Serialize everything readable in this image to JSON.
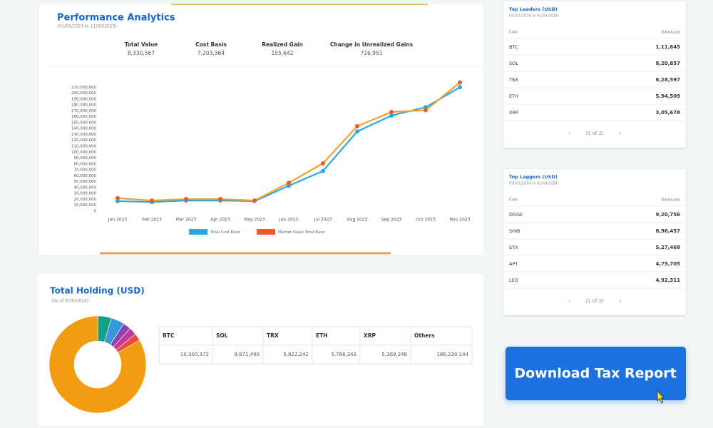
{
  "performance": {
    "title": "Performance Analytics",
    "subtitle": "(01/01/2023 to 11/30/2023)",
    "stats": [
      {
        "label": "Total Value",
        "value": "8,330,567"
      },
      {
        "label": "Cost Basis",
        "value": "7,203,364"
      },
      {
        "label": "Realized Gain",
        "value": "155,642"
      },
      {
        "label": "Change in Unrealized Gains",
        "value": "726,951"
      }
    ],
    "chart": {
      "type": "line",
      "categories": [
        "Jan 2023",
        "Feb 2023",
        "Mar 2023",
        "Apr 2023",
        "May 2023",
        "Jun 2023",
        "Jul 2023",
        "Aug 2023",
        "Sep 2023",
        "Oct 2023",
        "Nov 2023"
      ],
      "series": [
        {
          "name": "Total Cost Base",
          "color": "#29a8e0",
          "values": [
            17000000,
            15500000,
            18000000,
            18000000,
            17000000,
            43000000,
            68000000,
            135000000,
            162000000,
            176000000,
            210000000
          ]
        },
        {
          "name": "Market Value Total Base",
          "color": "#f4a12c",
          "values": [
            22000000,
            18000000,
            20500000,
            20500000,
            18000000,
            48000000,
            81000000,
            144000000,
            168000000,
            171000000,
            218000000
          ]
        }
      ],
      "ylim": [
        0,
        220000000
      ],
      "yticks": [
        0,
        {
          "value": 10000000,
          "label": "10,000,000"
        },
        {
          "value": 20000000,
          "label": "20,000,000"
        },
        {
          "value": 30000000,
          "label": "30,000,000"
        },
        {
          "value": 40000000,
          "label": "40,000,000"
        },
        {
          "value": 50000000,
          "label": "50,000,000"
        },
        {
          "value": 60000000,
          "label": "60,000,000"
        },
        {
          "value": 70000000,
          "label": "70,000,000"
        },
        {
          "value": 80000000,
          "label": "80,000,000"
        },
        {
          "value": 90000000,
          "label": "90,000,000"
        },
        {
          "value": 100000000,
          "label": "100,000,000"
        },
        {
          "value": 110000000,
          "label": "110,000,000"
        },
        {
          "value": 120000000,
          "label": "120,000,000"
        },
        {
          "value": 130000000,
          "label": "130,000,000"
        },
        {
          "value": 140000000,
          "label": "140,000,000"
        },
        {
          "value": 150000000,
          "label": "150,000,000"
        },
        {
          "value": 160000000,
          "label": "160,000,000"
        },
        {
          "value": 170000000,
          "label": "170,000,000"
        },
        {
          "value": 180000000,
          "label": "180,000,000"
        },
        {
          "value": 190000000,
          "label": "190,000,000"
        },
        {
          "value": 200000000,
          "label": "200,000,000"
        },
        {
          "value": 210000000,
          "label": "210,000,000"
        }
      ]
    }
  },
  "holding": {
    "title": "Total Holding (USD)",
    "subtitle": "(As of 9/30/2024)",
    "chart": {
      "type": "pie",
      "categories": [
        "BTC",
        "SOL",
        "TRX",
        "ETH",
        "XRP",
        "Others"
      ],
      "values": [
        10300372,
        9871490,
        5822242,
        5768343,
        5309248,
        186230144
      ],
      "value_labels": [
        "10,300,372",
        "9,871,490",
        "5,822,242",
        "5,768,343",
        "5,309,248",
        "186,230,144"
      ],
      "colors": [
        "#16a085",
        "#3498db",
        "#8e44ad",
        "#c0399b",
        "#e74c3c",
        "#f39c12"
      ]
    }
  },
  "leaders": {
    "title": "Top Leaders (USD)",
    "subtitle": "(01/01/2024 to 01/04/2024)",
    "headers": [
      "Coin",
      "Gain/Loss"
    ],
    "rows": [
      [
        "BTC",
        "1,11,645"
      ],
      [
        "SOL",
        "8,20,857"
      ],
      [
        "TRX",
        "6,28,597"
      ],
      [
        "ETH",
        "5,94,509"
      ],
      [
        "XRP",
        "3,05,678"
      ]
    ],
    "pagination": "(1 of 2)"
  },
  "laggers": {
    "title": "Top Laggers (USD)",
    "subtitle": "(01/01/2024 to 01/04/2024)",
    "headers": [
      "Coin",
      "Gain/Loss"
    ],
    "rows": [
      [
        "DOGE",
        "9,20,756"
      ],
      [
        "SHIB",
        "8,96,457"
      ],
      [
        "STX",
        "5,27,468"
      ],
      [
        "APT",
        "4,75,705"
      ],
      [
        "LEO",
        "4,92,311"
      ]
    ],
    "pagination": "(1 of 2)"
  },
  "button": "Download Tax Report"
}
